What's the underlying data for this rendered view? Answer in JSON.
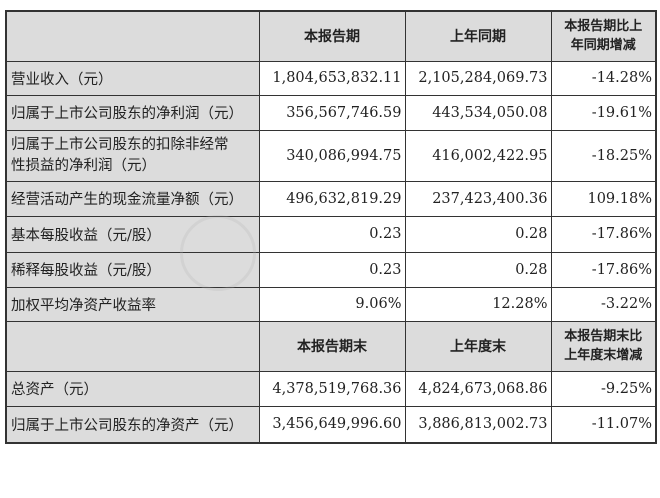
{
  "header1": [
    "",
    "本报告期",
    "上年同期",
    "本报告期比上年同期增减"
  ],
  "header1_col4_lines": [
    "本报告期比上",
    "年同期增减"
  ],
  "rows1": [
    {
      "label": "营业收入（元）",
      "current": "1,804,653,832.11",
      "prior": "2,105,284,069.73",
      "change": "-14.28%"
    },
    {
      "label": "归属于上市公司股东的净利润（元）",
      "current": "356,567,746.59",
      "prior": "443,534,050.08",
      "change": "-19.61%"
    },
    {
      "label": "归属于上市公司股东的扣除非经常性损益的净利润（元）",
      "label_lines": [
        "归属于上市公司股东的扣除非经常",
        "性损益的净利润（元）"
      ],
      "current": "340,086,994.75",
      "prior": "416,002,422.95",
      "change": "-18.25%"
    },
    {
      "label": "经营活动产生的现金流量净额（元）",
      "current": "496,632,819.29",
      "prior": "237,423,400.36",
      "change": "109.18%"
    },
    {
      "label": "基本每股收益（元/股）",
      "current": "0.23",
      "prior": "0.28",
      "change": "-17.86%"
    },
    {
      "label": "稀释每股收益（元/股）",
      "current": "0.23",
      "prior": "0.28",
      "change": "-17.86%"
    },
    {
      "label": "加权平均净资产收益率",
      "current": "9.06%",
      "prior": "12.28%",
      "change": "-3.22%"
    }
  ],
  "header2": [
    "",
    "本报告期末",
    "上年度末",
    "本报告期末比上年度末增减"
  ],
  "header2_col4_lines": [
    "本报告期末比",
    "上年度末增减"
  ],
  "rows2": [
    {
      "label": "总资产（元）",
      "current": "4,378,519,768.36",
      "prior": "4,824,673,068.86",
      "change": "-9.25%"
    },
    {
      "label": "归属于上市公司股东的净资产（元）",
      "current": "3,456,649,996.60",
      "prior": "3,886,813,002.73",
      "change": "-11.07%"
    }
  ]
}
